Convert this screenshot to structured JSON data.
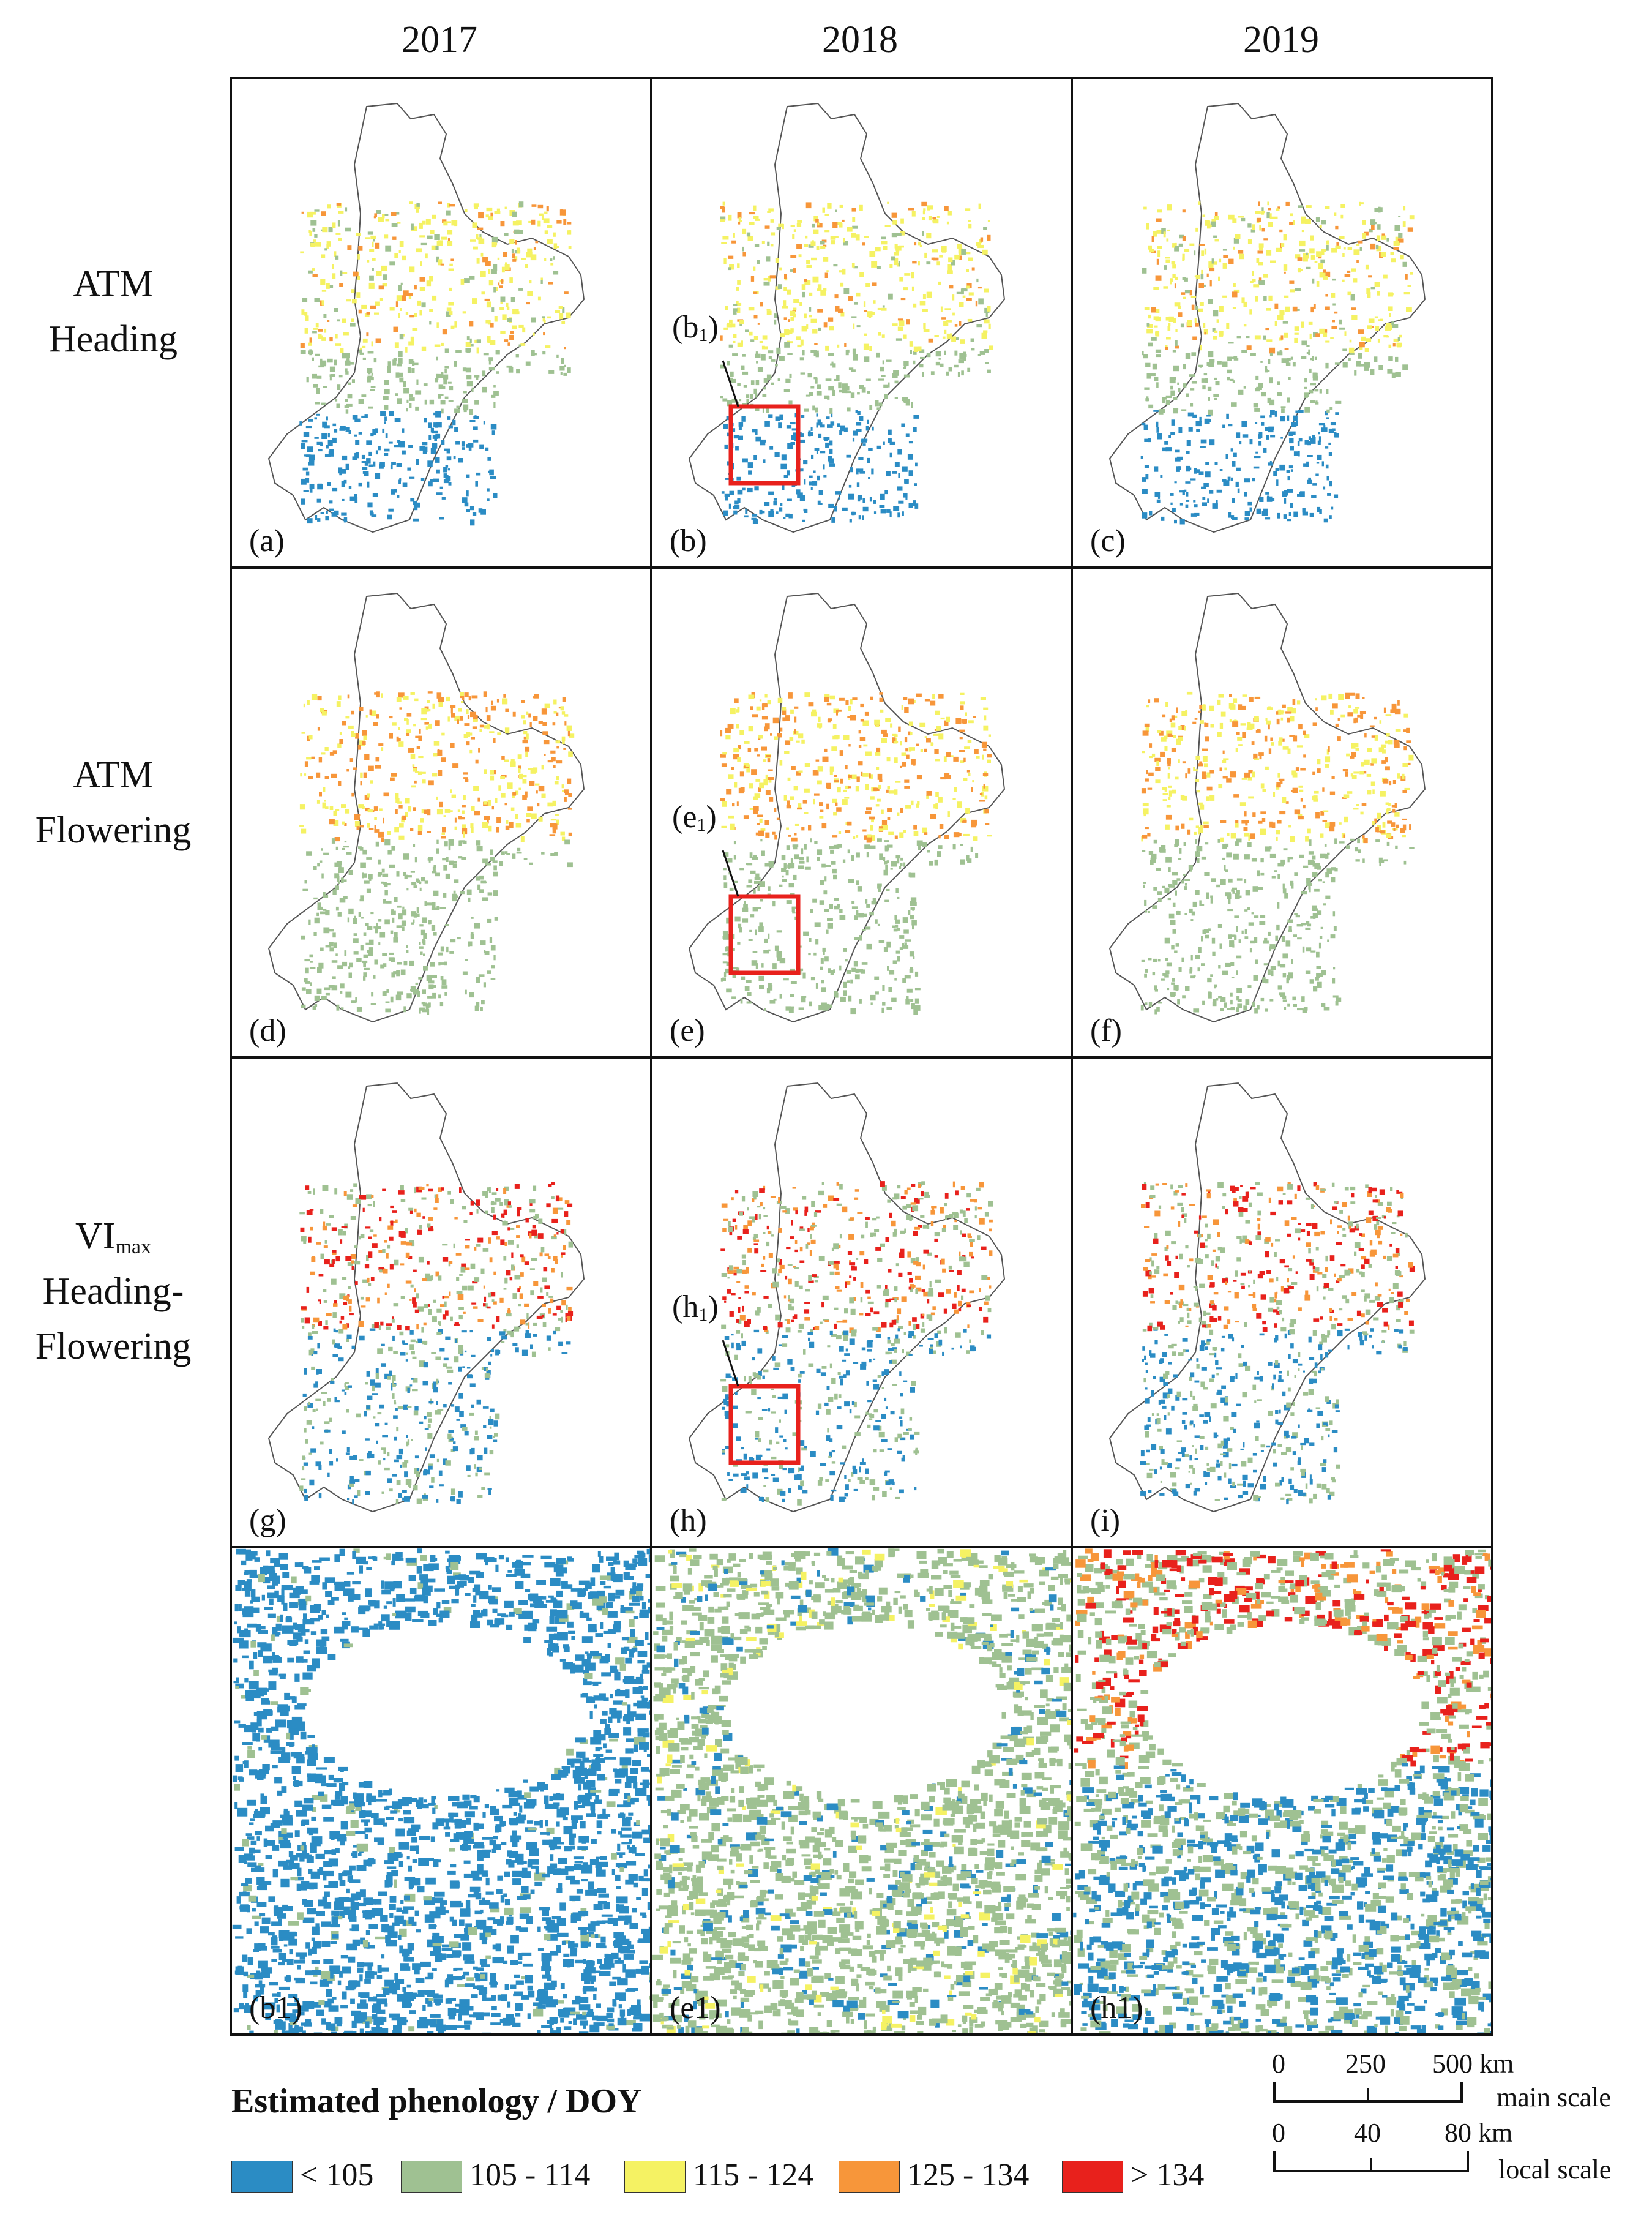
{
  "columns": [
    "2017",
    "2018",
    "2019"
  ],
  "rows": [
    {
      "line1": "ATM",
      "line2": "Heading"
    },
    {
      "line1": "ATM",
      "line2": "Flowering"
    },
    {
      "line1_base": "VI",
      "line1_sub": "max",
      "line2": "Heading-",
      "line3": "Flowering"
    }
  ],
  "panel_labels": [
    "(a)",
    "(b)",
    "(c)",
    "(d)",
    "(e)",
    "(f)",
    "(g)",
    "(h)",
    "(i)",
    "(b1)",
    "(e1)",
    "(h1)"
  ],
  "callouts": [
    {
      "base": "(b",
      "sub": "1",
      "close": ")"
    },
    {
      "base": "(e",
      "sub": "1",
      "close": ")"
    },
    {
      "base": "(h",
      "sub": "1",
      "close": ")"
    }
  ],
  "legend": {
    "title": "Estimated phenology / DOY",
    "items": [
      {
        "label": "< 105",
        "color": "#2b8cc4"
      },
      {
        "label": "105 - 114",
        "color": "#9fc192"
      },
      {
        "label": "115 - 124",
        "color": "#f5f263"
      },
      {
        "label": "125 - 134",
        "color": "#f7963a"
      },
      {
        "label": "> 134",
        "color": "#e8211c"
      }
    ]
  },
  "scale_bars": {
    "main": {
      "ticks": [
        "0",
        "250",
        "500 km"
      ],
      "label": "main scale"
    },
    "local": {
      "ticks": [
        "0",
        "40",
        "80 km"
      ],
      "label": "local scale"
    }
  },
  "colors": {
    "highlight_box": "#e8211c",
    "boundary": "#555555",
    "frame": "#111111"
  }
}
